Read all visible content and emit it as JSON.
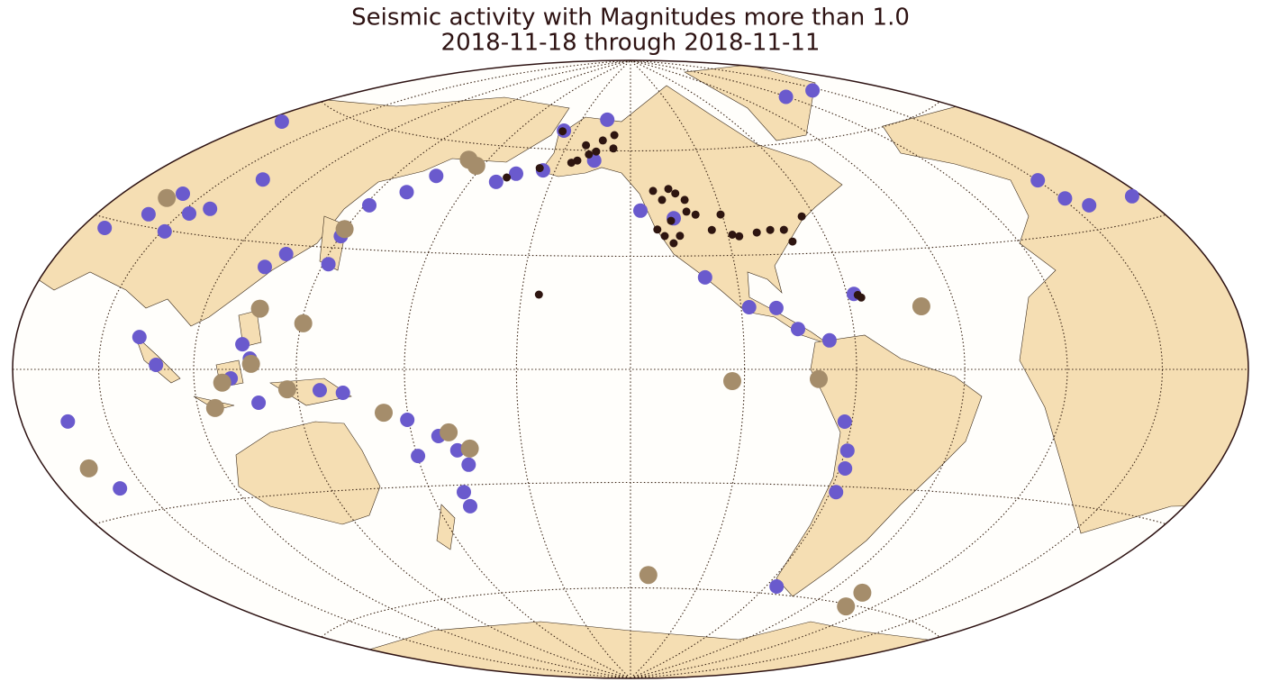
{
  "chart_data": {
    "type": "map",
    "title": "Seismic activity with Magnitudes more than 1.0",
    "subtitle": "2018-11-18 through 2018-11-11",
    "projection": "hammer",
    "series": [
      {
        "color": "#6a5acd",
        "lon": [
          57.7,
          58.6,
          72.1,
          69,
          81,
          83,
          88.4,
          93.6,
          122.6,
          126.8,
          141.6,
          140.2,
          141.6,
          150.4,
          155.6,
          179.8,
          -174.6,
          -164.8,
          -166,
          -145.4,
          -144.4,
          -10.8,
          14.8,
          -126.7,
          -116,
          -109,
          -97.8,
          -90.4,
          -85.2,
          -77,
          -68,
          -72,
          -69.4,
          -68.4,
          -68.2,
          -65.4,
          20.3,
          21,
          26.5,
          46.3,
          92.2,
          98.4,
          124,
          126.6,
          121,
          128.4,
          146.4,
          152.8,
          169.6,
          177.4,
          170.2,
          -178.2,
          -176,
          -180,
          -179.8,
          66.6,
          71.4
        ],
        "lat": [
          54.8,
          28.2,
          37.6,
          32.4,
          29.7,
          34.1,
          35.8,
          43.8,
          24.3,
          27.7,
          25.9,
          33.0,
          41.2,
          45.4,
          50.3,
          49.8,
          52.4,
          53.7,
          65.7,
          57,
          69.6,
          71.7,
          71.1,
          42.6,
          40.4,
          24.2,
          16.2,
          15.9,
          10.4,
          7.4,
          19.2,
          -13.3,
          -20.7,
          -25.3,
          -31.5,
          -57.8,
          41.9,
          37.3,
          35,
          34.6,
          7.0,
          1.0,
          5.9,
          2.55,
          -2.1,
          -7.9,
          -5.1,
          -5.8,
          -12.8,
          -17.1,
          -22.1,
          -20.9,
          -24.7,
          -31.9,
          -35.7,
          -10.4,
          -24.6
        ]
      },
      {
        "color": "#a58d6b",
        "lon": [
          162,
          167.4,
          68.4,
          139.8,
          126.8,
          140.6,
          127,
          118.4,
          115.2,
          137.2,
          163.4,
          -179.6,
          -174.6,
          65.7,
          -49.8,
          -103.2,
          -80.2,
          -122.6,
          -25.6,
          -22.4
        ],
        "lat": [
          55.4,
          53.9,
          36.1,
          34.8,
          14.4,
          11.2,
          1.3,
          -3.1,
          -8.9,
          -4.8,
          -10.9,
          -16.2,
          -20.5,
          -19.9,
          15.6,
          -3.05,
          -2.5,
          -56.1,
          -56.7,
          -60.6
        ]
      },
      {
        "color": "#2e1510",
        "lon": [
          -166.5,
          -152.5,
          -151.1,
          -148.4,
          -145.5,
          -143.7,
          -138.4,
          -137.9,
          -154.7,
          -166.6,
          -177.3,
          -121.9,
          -116.3,
          -111.3,
          -111.5,
          -121.6,
          -119.5,
          -117,
          -114.8,
          -117,
          -108.7,
          -100.5,
          -98.6,
          -96.6,
          -90.8,
          -86.3,
          -82,
          -74.2,
          -80.8,
          -104.6,
          -155.2,
          -67,
          -66.2,
          -119.1,
          -114.1
        ],
        "lat": [
          65.5,
          56.9,
          61.5,
          58.8,
          59.7,
          63.1,
          64.8,
          60.7,
          56.2,
          54.3,
          51.2,
          48.2,
          48.7,
          45.5,
          42.2,
          37.3,
          35.5,
          33.5,
          35.5,
          39.7,
          41.3,
          41.2,
          35.6,
          35.1,
          36.0,
          36.6,
          36.5,
          39.9,
          33.3,
          37.0,
          19.6,
          18.9,
          18.2,
          45.6,
          47.4
        ]
      }
    ]
  }
}
